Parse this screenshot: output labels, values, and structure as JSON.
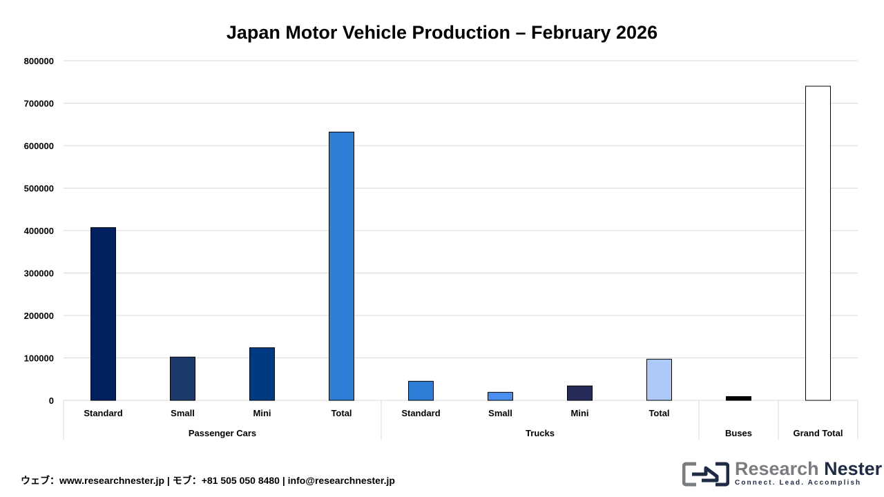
{
  "chart_data": {
    "type": "bar",
    "title": "Japan Motor Vehicle Production – February 2026",
    "xlabel": "",
    "ylabel": "",
    "ylim": [
      0,
      800000
    ],
    "yticks": [
      "0",
      "100000",
      "200000",
      "300000",
      "400000",
      "500000",
      "600000",
      "700000",
      "800000"
    ],
    "grid": true,
    "legend": "none",
    "categories": [
      "Standard",
      "Small",
      "Mini",
      "Total",
      "Standard",
      "Small",
      "Mini",
      "Total",
      "",
      ""
    ],
    "groups": [
      {
        "label": "Passenger Cars",
        "span": 4
      },
      {
        "label": "Trucks",
        "span": 4
      },
      {
        "label": "Buses",
        "span": 1
      },
      {
        "label": "Grand Total",
        "span": 1
      }
    ],
    "values": [
      407000,
      102000,
      124000,
      632000,
      45000,
      19000,
      34000,
      97000,
      9000,
      740000
    ],
    "colors": [
      "#002060",
      "#1b3a6b",
      "#003a80",
      "#2e7ed8",
      "#2e7ed8",
      "#4a8ef0",
      "#262b5a",
      "#adc9f7",
      "#000000",
      "#ffffff"
    ]
  },
  "footer": {
    "contact": "ウェブ：www.researchnester.jp | モブ：+81 505 050 8480 | info@researchnester.jp"
  },
  "logo": {
    "name_part1": "Research ",
    "name_part2": "Nester",
    "tagline": "Connect. Lead. Accomplish"
  }
}
